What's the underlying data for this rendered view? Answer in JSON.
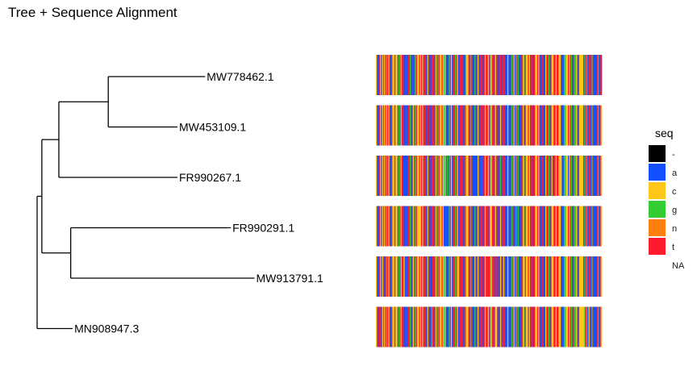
{
  "chart_data": {
    "type": "tree-alignment",
    "title": "Tree + Sequence Alignment",
    "tips": [
      "MW778462.1",
      "MW453109.1",
      "FR990267.1",
      "FR990291.1",
      "MW913791.1",
      "MN908947.3"
    ],
    "tree": {
      "x_range": [
        0,
        0.0455
      ],
      "nodes": [
        {
          "id": "root",
          "x": 0.0
        },
        {
          "id": "n1",
          "x": 0.0012,
          "parent": "root"
        },
        {
          "id": "n2",
          "x": 0.0055,
          "parent": "n1"
        },
        {
          "id": "n3",
          "x": 0.018,
          "parent": "n2"
        },
        {
          "id": "n4",
          "x": 0.0085,
          "parent": "n1"
        },
        {
          "id": "t0",
          "x": 0.0425,
          "parent": "n3",
          "tip": 0
        },
        {
          "id": "t1",
          "x": 0.0355,
          "parent": "n3",
          "tip": 1
        },
        {
          "id": "t2",
          "x": 0.0355,
          "parent": "n2",
          "tip": 2
        },
        {
          "id": "t3",
          "x": 0.049,
          "parent": "n4",
          "tip": 3
        },
        {
          "id": "t4",
          "x": 0.055,
          "parent": "n4",
          "tip": 4
        },
        {
          "id": "t5",
          "x": 0.009,
          "parent": "root",
          "tip": 5
        }
      ]
    },
    "alignment": {
      "positions": 220,
      "rows": 6
    },
    "legend": {
      "title": "seq",
      "placement": "right",
      "entries": [
        {
          "label": "-",
          "color": "#000000"
        },
        {
          "label": "a",
          "color": "#1450ff"
        },
        {
          "label": "c",
          "color": "#ffc61a"
        },
        {
          "label": "g",
          "color": "#33cc33"
        },
        {
          "label": "n",
          "color": "#ff7f0e"
        },
        {
          "label": "t",
          "color": "#ff1a2e"
        },
        {
          "label": "NA",
          "color": ""
        }
      ]
    },
    "grid": false
  }
}
